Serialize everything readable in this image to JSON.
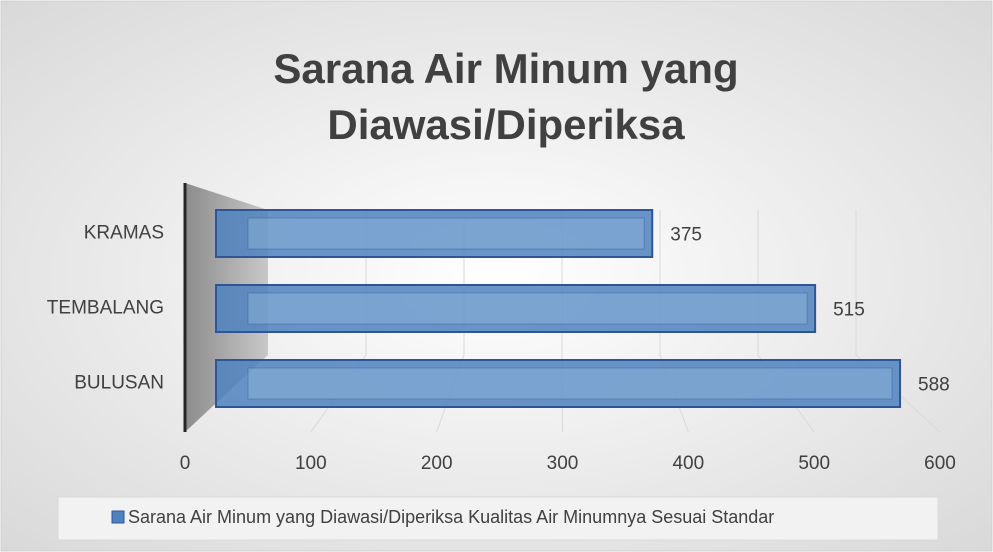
{
  "chart_data": {
    "type": "bar",
    "orientation": "horizontal",
    "title": "Sarana Air Minum yang Diawasi/Diperiksa",
    "categories": [
      "KRAMAS",
      "TEMBALANG",
      "BULUSAN"
    ],
    "series": [
      {
        "name": "Sarana Air Minum yang Diawasi/Diperiksa Kualitas Air Minumnya Sesuai Standar",
        "color": "#4f81bd",
        "values": [
          375,
          515,
          588
        ]
      }
    ],
    "xlim": [
      0,
      600
    ],
    "xticks": [
      0,
      100,
      200,
      300,
      400,
      500,
      600
    ],
    "grid": true,
    "legend": "bottom"
  }
}
